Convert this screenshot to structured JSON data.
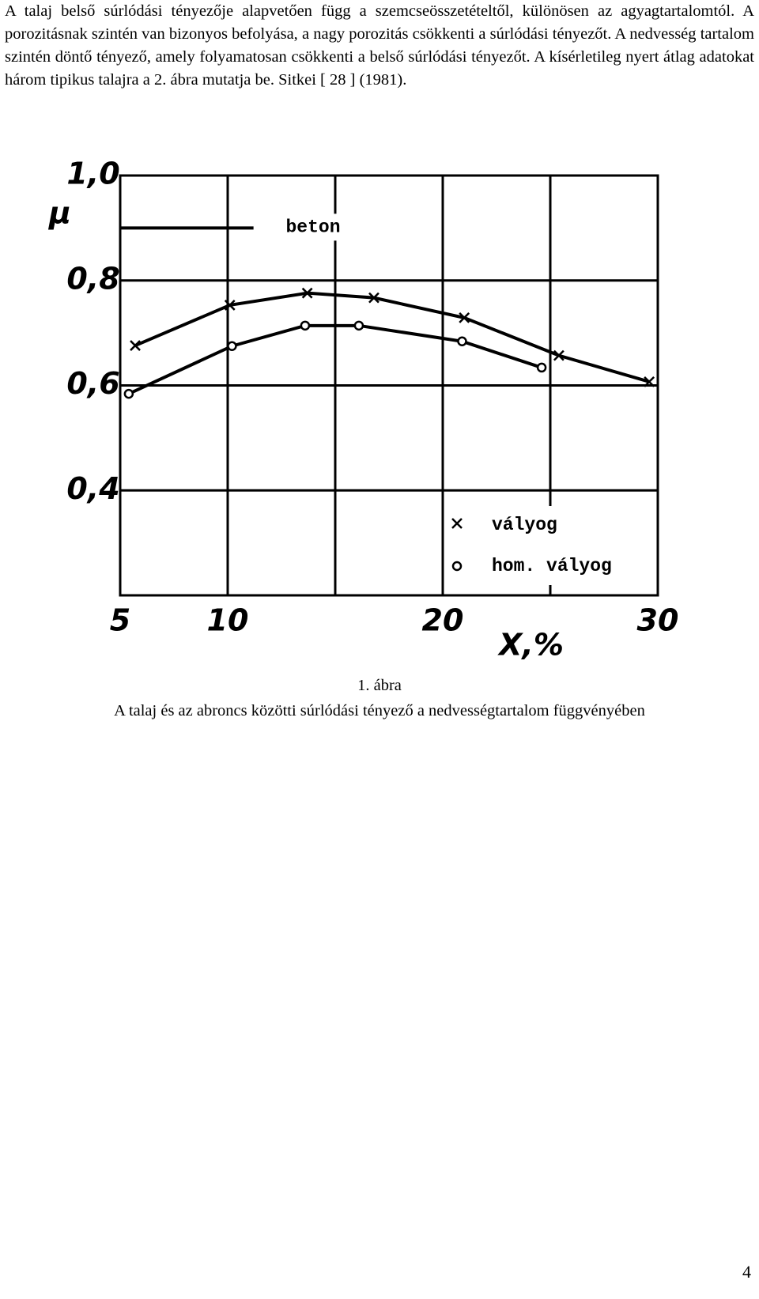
{
  "paragraph": "A talaj belső súrlódási tényezője alapvetően függ a szemcseösszetételtől, különösen az agyagtartalomtól. A porozitásnak szintén van bizonyos befolyása, a nagy porozitás csökkenti a súrlódási tényezőt. A nedvesség tartalom szintén döntő tényező, amely folyamatosan csökkenti a belső súrlódási tényezőt. A kísérletileg nyert átlag adatokat három tipikus talajra a 2. ábra mutatja be. Sitkei [ 28 ] (1981).",
  "chart_data": {
    "type": "line",
    "xlabel": "X,%",
    "ylabel": "μ",
    "xlim": [
      5,
      30
    ],
    "xticks": [
      5,
      10,
      20,
      30
    ],
    "x_minor_ticks": [
      15,
      25
    ],
    "ylim": [
      0.2,
      1.0
    ],
    "yticks": [
      {
        "value": 0.4,
        "label": "0,4"
      },
      {
        "value": 0.6,
        "label": "0,6"
      },
      {
        "value": 0.8,
        "label": "0,8"
      },
      {
        "value": 1.0,
        "label": "1,0"
      }
    ],
    "grid": true,
    "reference_line": {
      "label": "beton",
      "value": 0.9,
      "x": [
        5,
        11.2
      ]
    },
    "series": [
      {
        "name": "vályog",
        "marker": "x",
        "color": "#000000",
        "x": [
          5.7,
          10.1,
          13.7,
          16.8,
          21.0,
          25.4,
          29.6
        ],
        "values": [
          0.676,
          0.753,
          0.776,
          0.767,
          0.729,
          0.657,
          0.607
        ]
      },
      {
        "name": "hom. vályog",
        "marker": "o",
        "color": "#000000",
        "x": [
          5.4,
          10.2,
          13.6,
          16.1,
          20.9,
          24.6
        ],
        "values": [
          0.584,
          0.675,
          0.714,
          0.714,
          0.684,
          0.634
        ]
      }
    ]
  },
  "caption": {
    "number": "1. ábra",
    "text": "A talaj és az abroncs közötti  súrlódási tényező a nedvességtartalom függvényében"
  },
  "page_number": "4"
}
